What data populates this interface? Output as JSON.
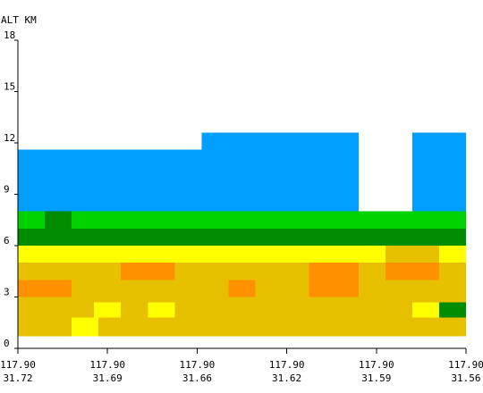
{
  "chart_data": {
    "type": "heatmap",
    "title": "",
    "y_axis_label": "ALT KM",
    "ylim": [
      0,
      18
    ],
    "y_ticks": [
      "0",
      "3",
      "6",
      "9",
      "12",
      "15",
      "18"
    ],
    "x_ticks": [
      {
        "lon": "117.90",
        "lat": "31.72"
      },
      {
        "lon": "117.90",
        "lat": "31.69"
      },
      {
        "lon": "117.90",
        "lat": "31.66"
      },
      {
        "lon": "117.90",
        "lat": "31.62"
      },
      {
        "lon": "117.90",
        "lat": "31.59"
      },
      {
        "lon": "117.90",
        "lat": "31.56"
      }
    ],
    "x_range_index": [
      0,
      50
    ],
    "colors": {
      "sky_blue": "#009eff",
      "green": "#00d200",
      "dark_green": "#008c00",
      "yellow": "#ffff00",
      "gold": "#e7c000",
      "orange": "#ff9000"
    },
    "cells": [
      {
        "x0": 0,
        "x1": 20.5,
        "y0": 8.0,
        "y1": 11.6,
        "color": "sky_blue"
      },
      {
        "x0": 20.5,
        "x1": 38,
        "y0": 8.0,
        "y1": 12.6,
        "color": "sky_blue"
      },
      {
        "x0": 44,
        "x1": 50,
        "y0": 8.0,
        "y1": 12.6,
        "color": "sky_blue"
      },
      {
        "x0": 0,
        "x1": 50,
        "y0": 7.0,
        "y1": 8.0,
        "color": "green"
      },
      {
        "x0": 3,
        "x1": 6,
        "y0": 7.0,
        "y1": 8.0,
        "color": "dark_green"
      },
      {
        "x0": 0,
        "x1": 50,
        "y0": 6.0,
        "y1": 7.0,
        "color": "dark_green"
      },
      {
        "x0": 0,
        "x1": 50,
        "y0": 5.0,
        "y1": 6.0,
        "color": "yellow"
      },
      {
        "x0": 41,
        "x1": 47,
        "y0": 5.0,
        "y1": 6.0,
        "color": "gold"
      },
      {
        "x0": 0,
        "x1": 50,
        "y0": 0.7,
        "y1": 5.0,
        "color": "gold"
      },
      {
        "x0": 11.5,
        "x1": 17.5,
        "y0": 4.0,
        "y1": 5.0,
        "color": "orange"
      },
      {
        "x0": 32.5,
        "x1": 38,
        "y0": 4.0,
        "y1": 5.0,
        "color": "orange"
      },
      {
        "x0": 41,
        "x1": 47,
        "y0": 4.0,
        "y1": 5.0,
        "color": "orange"
      },
      {
        "x0": 0,
        "x1": 6,
        "y0": 3.0,
        "y1": 4.0,
        "color": "orange"
      },
      {
        "x0": 23.5,
        "x1": 26.5,
        "y0": 3.0,
        "y1": 4.0,
        "color": "orange"
      },
      {
        "x0": 32.5,
        "x1": 38,
        "y0": 3.0,
        "y1": 4.0,
        "color": "orange"
      },
      {
        "x0": 8.5,
        "x1": 11.5,
        "y0": 1.8,
        "y1": 2.7,
        "color": "yellow"
      },
      {
        "x0": 14.5,
        "x1": 17.5,
        "y0": 1.8,
        "y1": 2.7,
        "color": "yellow"
      },
      {
        "x0": 44,
        "x1": 47,
        "y0": 1.8,
        "y1": 2.7,
        "color": "yellow"
      },
      {
        "x0": 47,
        "x1": 50,
        "y0": 1.8,
        "y1": 2.7,
        "color": "dark_green"
      },
      {
        "x0": 6,
        "x1": 9,
        "y0": 0.7,
        "y1": 1.8,
        "color": "yellow"
      }
    ]
  }
}
